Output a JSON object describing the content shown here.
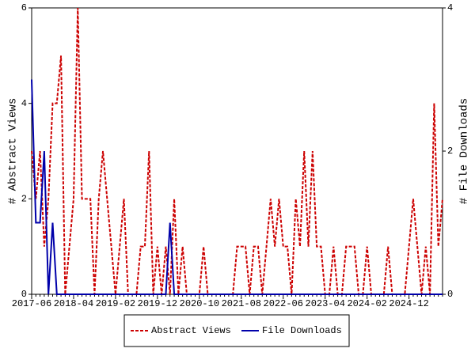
{
  "chart_data": {
    "type": "line",
    "categories": [
      "2017-06",
      null,
      null,
      null,
      null,
      null,
      null,
      null,
      null,
      null,
      "2018-04",
      null,
      null,
      null,
      null,
      null,
      null,
      null,
      null,
      null,
      "2019-02",
      null,
      null,
      null,
      null,
      null,
      null,
      null,
      null,
      null,
      "2019-12",
      null,
      null,
      null,
      null,
      null,
      null,
      null,
      null,
      null,
      "2020-10",
      null,
      null,
      null,
      null,
      null,
      null,
      null,
      null,
      null,
      "2021-08",
      null,
      null,
      null,
      null,
      null,
      null,
      null,
      null,
      null,
      "2022-06",
      null,
      null,
      null,
      null,
      null,
      null,
      null,
      null,
      null,
      "2023-04",
      null,
      null,
      null,
      null,
      null,
      null,
      null,
      null,
      null,
      "2024-02",
      null,
      null,
      null,
      null,
      null,
      null,
      null,
      null,
      null,
      "2024-12",
      null,
      null,
      null,
      null,
      null,
      null,
      null,
      null
    ],
    "y_label": "# Abstract Views",
    "y2_label": "# File Downloads",
    "ylim": [
      0,
      6
    ],
    "yticks": [
      0,
      2,
      4,
      6
    ],
    "y2lim": [
      0,
      4
    ],
    "y2ticks": [
      0,
      2,
      4
    ],
    "legend": "bottom",
    "series": [
      {
        "name": "Abstract Views",
        "color": "#cc0000",
        "dash": true,
        "values": [
          3,
          2,
          3,
          1,
          2,
          4,
          4,
          5,
          0,
          1,
          2,
          6,
          2,
          2,
          2,
          0,
          2,
          3,
          2,
          1,
          0,
          1,
          2,
          0,
          0,
          0,
          1,
          1,
          3,
          0,
          1,
          0,
          1,
          0,
          2,
          0,
          1,
          0,
          0,
          0,
          0,
          1,
          0,
          0,
          0,
          0,
          0,
          0,
          0,
          1,
          1,
          1,
          0,
          1,
          1,
          0,
          1,
          2,
          1,
          2,
          1,
          1,
          0,
          2,
          1,
          3,
          1,
          3,
          1,
          1,
          0,
          0,
          1,
          0,
          0,
          1,
          1,
          1,
          0,
          0,
          1,
          0,
          0,
          0,
          0,
          1,
          0,
          0,
          0,
          0,
          1,
          2,
          1,
          0,
          1,
          0,
          4,
          1,
          2
        ]
      },
      {
        "name": "File Downloads",
        "color": "#0000aa",
        "axis": "y2",
        "values": [
          3,
          1,
          1,
          2,
          0,
          1,
          0,
          0,
          0,
          0,
          0,
          0,
          0,
          0,
          0,
          0,
          0,
          0,
          0,
          0,
          0,
          0,
          0,
          0,
          0,
          0,
          0,
          0,
          0,
          0,
          0,
          0,
          0,
          1,
          0,
          0,
          0,
          0,
          0,
          0,
          0,
          0,
          0,
          0,
          0,
          0,
          0,
          0,
          0,
          0,
          0,
          0,
          0,
          0,
          0,
          0,
          0,
          0,
          0,
          0,
          0,
          0,
          0,
          0,
          0,
          0,
          0,
          0,
          0,
          0,
          0,
          0,
          0,
          0,
          0,
          0,
          0,
          0,
          0,
          0,
          0,
          0,
          0,
          0,
          0,
          0,
          0,
          0,
          0,
          0,
          0,
          0,
          0,
          0,
          0,
          0,
          0,
          0,
          0
        ]
      }
    ]
  }
}
